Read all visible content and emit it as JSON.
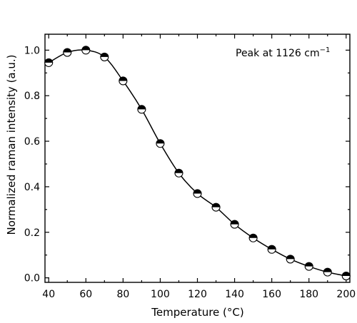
{
  "chart_data": {
    "type": "scatter",
    "xlabel": "Temperature (°C)",
    "ylabel": "Normalized raman intensity (a.u.)",
    "annotation": "Peak at 1126 cm",
    "annotation_superscript": "−1",
    "xlim": [
      38,
      202
    ],
    "ylim": [
      -0.02,
      1.07
    ],
    "xticks": [
      40,
      60,
      80,
      100,
      120,
      140,
      160,
      180,
      200
    ],
    "yticks": [
      0.0,
      0.2,
      0.4,
      0.6,
      0.8,
      1.0
    ],
    "ytick_labels": [
      "0.0",
      "0.2",
      "0.4",
      "0.6",
      "0.8",
      "1.0"
    ],
    "marker": "half-filled circle (top black, bottom white)",
    "fit_line": true,
    "series": [
      {
        "x": [
          40,
          50,
          60,
          70,
          80,
          90,
          100,
          110,
          120,
          130,
          140,
          150,
          160,
          170,
          180,
          190,
          200
        ],
        "y": [
          0.945,
          0.99,
          1.0,
          0.97,
          0.865,
          0.74,
          0.59,
          0.46,
          0.37,
          0.31,
          0.235,
          0.175,
          0.125,
          0.082,
          0.05,
          0.025,
          0.008
        ]
      }
    ]
  }
}
